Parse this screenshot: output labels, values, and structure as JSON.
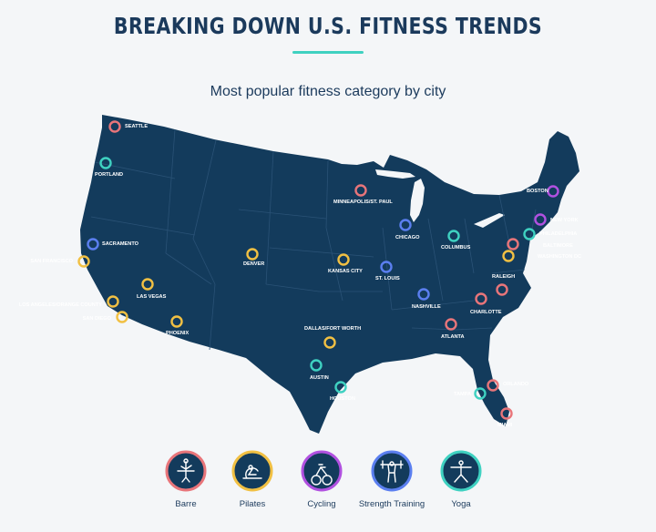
{
  "header": {
    "title": "BREAKING DOWN U.S. FITNESS TRENDS",
    "subtitle": "Most popular fitness category by city"
  },
  "colors": {
    "background": "#f4f6f8",
    "map_fill": "#133b5c",
    "title_text": "#1b3a5c",
    "accent_rule": "#3fd1c1",
    "label_text": "#ffffff"
  },
  "categories": [
    {
      "id": "barre",
      "label": "Barre",
      "color": "#e8757a",
      "icon": "barre-figure-icon"
    },
    {
      "id": "pilates",
      "label": "Pilates",
      "color": "#f1c043",
      "icon": "pilates-figure-icon"
    },
    {
      "id": "cycling",
      "label": "Cycling",
      "color": "#b151e0",
      "icon": "bicycle-icon"
    },
    {
      "id": "strength",
      "label": "Strength Training",
      "color": "#5b7ff0",
      "icon": "barbell-lift-icon"
    },
    {
      "id": "yoga",
      "label": "Yoga",
      "color": "#3fd1c1",
      "icon": "yoga-pose-icon"
    }
  ],
  "cities": [
    {
      "name": "SEATTLE",
      "category": "barre"
    },
    {
      "name": "PORTLAND",
      "category": "yoga"
    },
    {
      "name": "SACRAMENTO",
      "category": "strength"
    },
    {
      "name": "SAN FRANCISCO",
      "category": "pilates"
    },
    {
      "name": "LAS VEGAS",
      "category": "pilates"
    },
    {
      "name": "LOS ANGELES/ORANGE COUNTY",
      "category": "pilates"
    },
    {
      "name": "SAN DIEGO",
      "category": "pilates"
    },
    {
      "name": "PHOENIX",
      "category": "pilates"
    },
    {
      "name": "DENVER",
      "category": "pilates"
    },
    {
      "name": "MINNEAPOLIS/ST. PAUL",
      "category": "barre"
    },
    {
      "name": "KANSAS CITY",
      "category": "pilates"
    },
    {
      "name": "ST. LOUIS",
      "category": "strength"
    },
    {
      "name": "CHICAGO",
      "category": "strength"
    },
    {
      "name": "COLUMBUS",
      "category": "yoga"
    },
    {
      "name": "NASHVILLE",
      "category": "strength"
    },
    {
      "name": "DALLAS/FORT WORTH",
      "category": "pilates"
    },
    {
      "name": "AUSTIN",
      "category": "yoga"
    },
    {
      "name": "HOUSTON",
      "category": "yoga"
    },
    {
      "name": "ATLANTA",
      "category": "barre"
    },
    {
      "name": "CHARLOTTE",
      "category": "barre"
    },
    {
      "name": "RALEIGH",
      "category": "barre"
    },
    {
      "name": "BOSTON",
      "category": "cycling"
    },
    {
      "name": "NEW YORK",
      "category": "cycling"
    },
    {
      "name": "PHILADELPHIA",
      "category": "yoga"
    },
    {
      "name": "BALTIMORE",
      "category": "barre"
    },
    {
      "name": "WASHINGTON DC",
      "category": "pilates"
    },
    {
      "name": "ORLANDO",
      "category": "barre"
    },
    {
      "name": "TAMPA",
      "category": "yoga"
    },
    {
      "name": "MIAMI",
      "category": "barre"
    }
  ]
}
